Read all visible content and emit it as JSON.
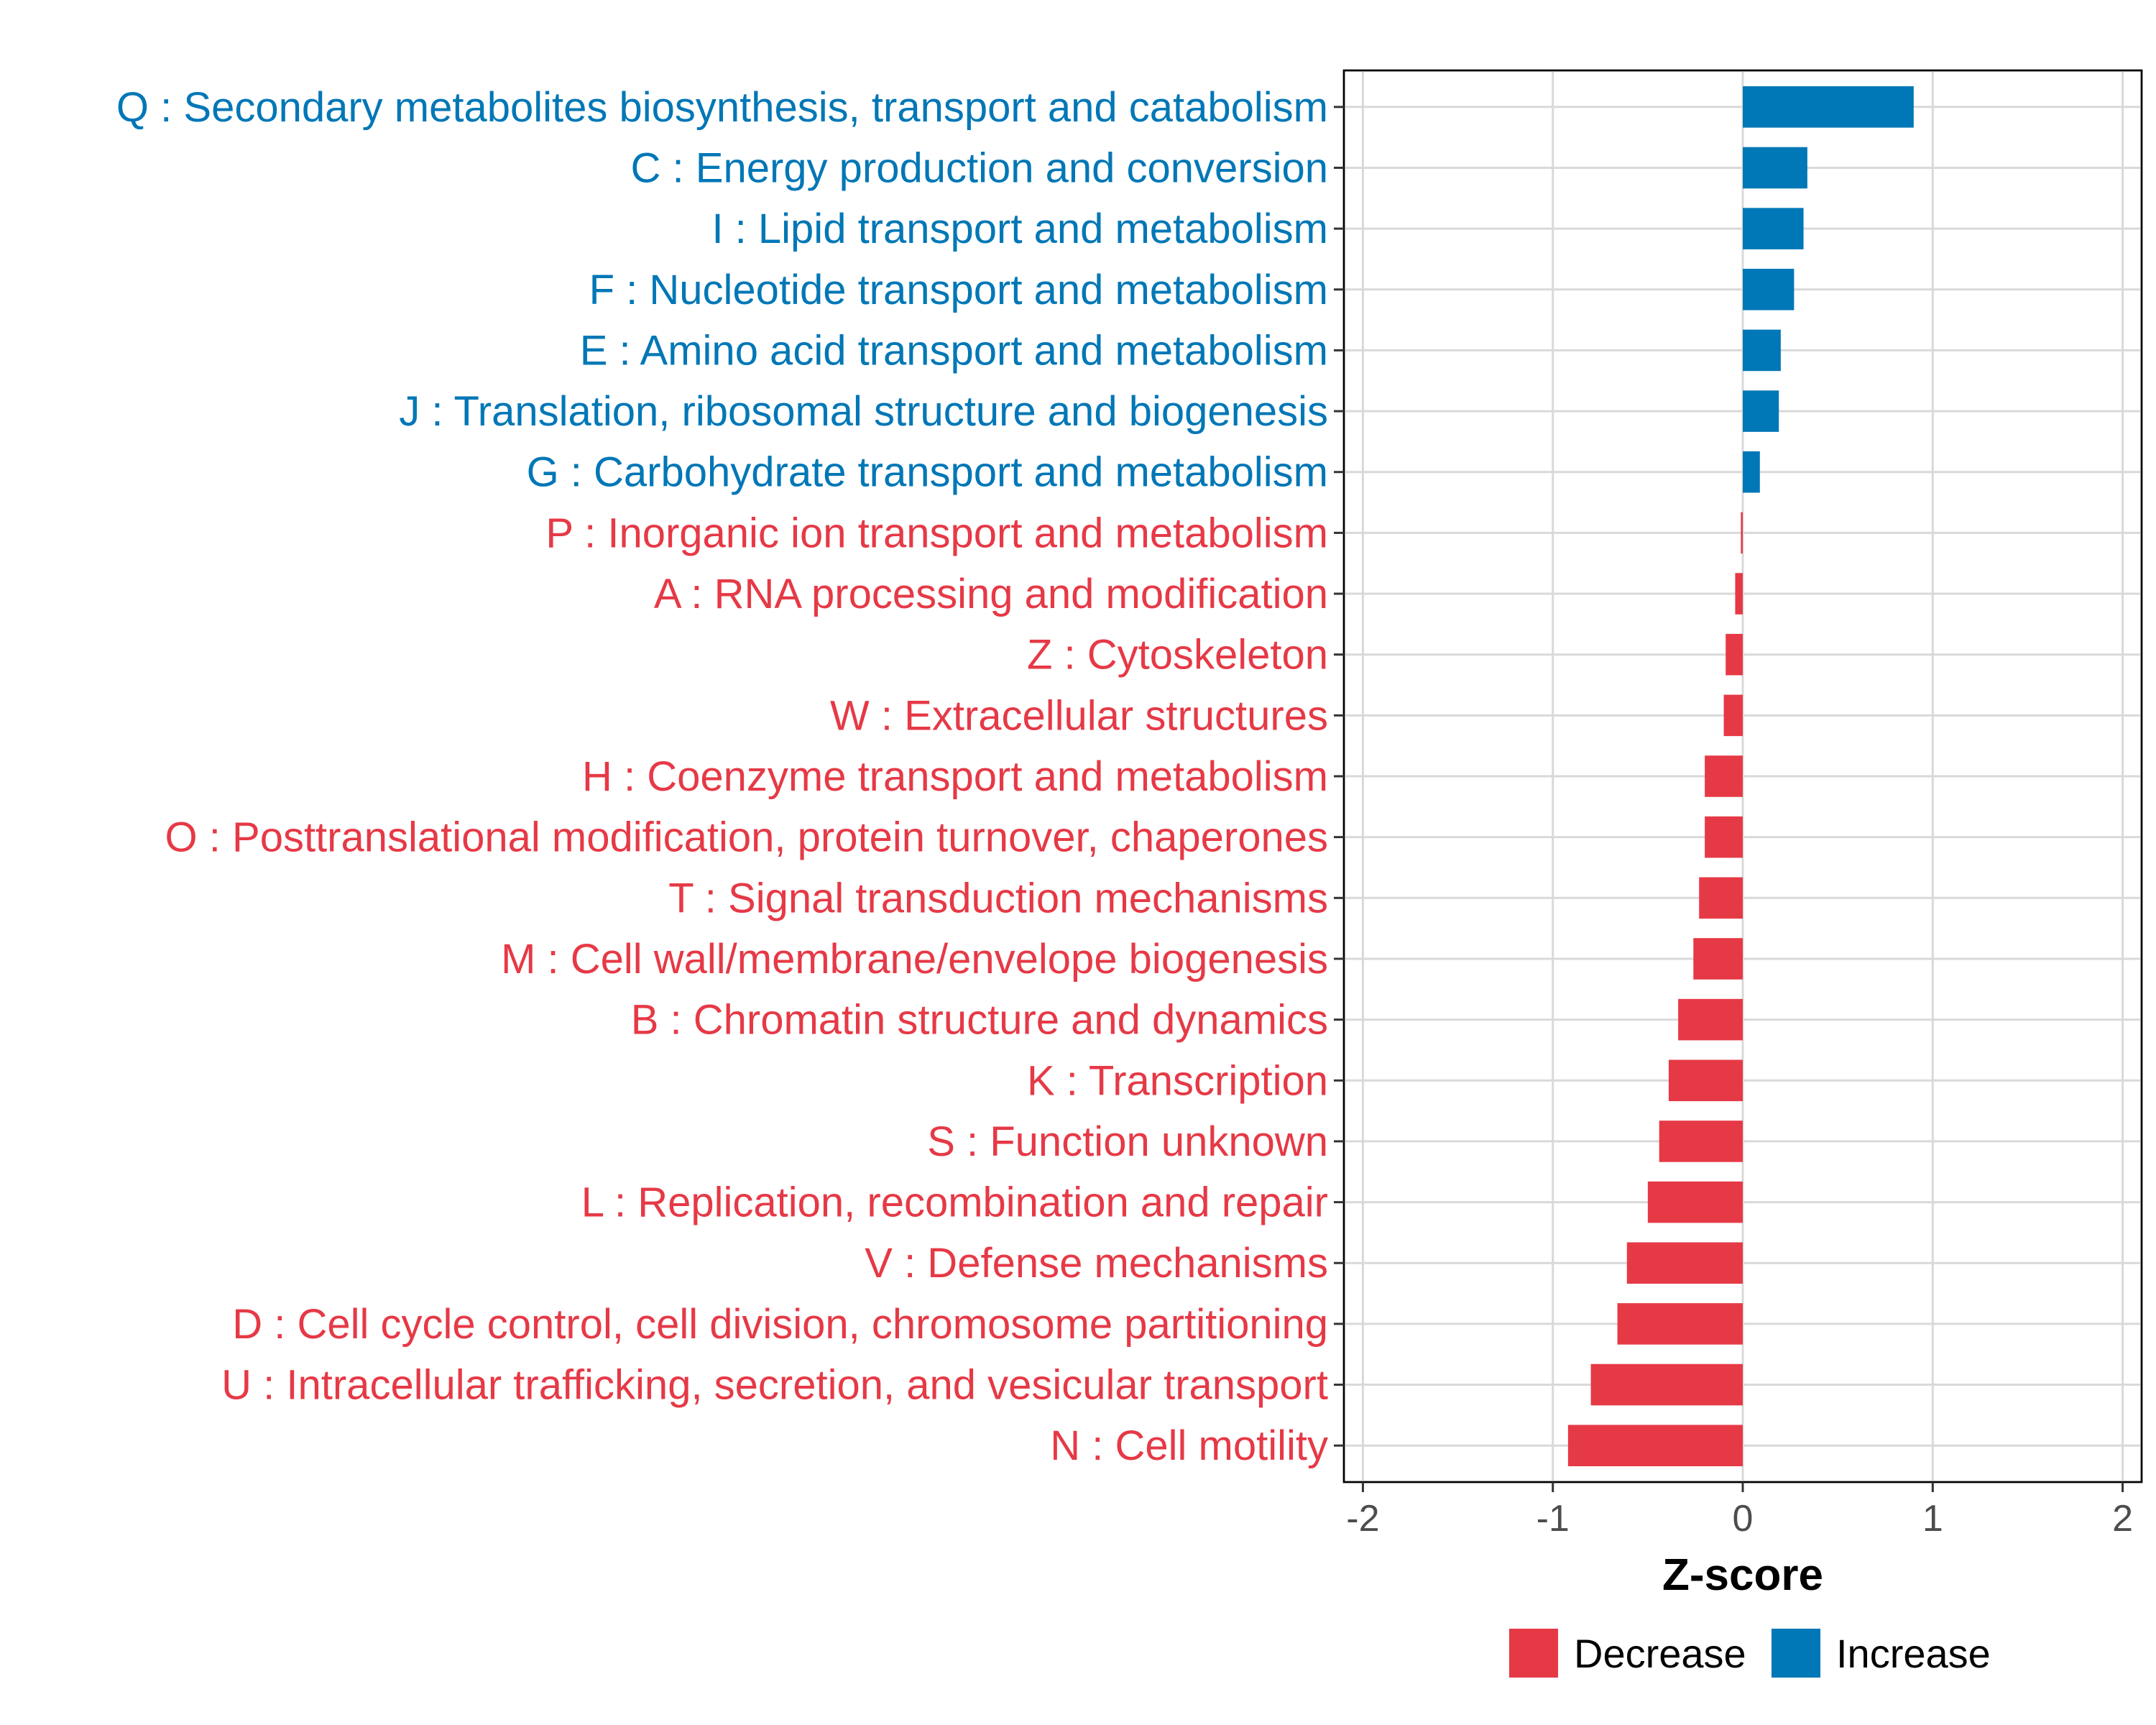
{
  "chart_data": {
    "type": "bar",
    "orientation": "horizontal",
    "xlabel": "Z-score",
    "ylabel": "",
    "xlim": [
      -2.1,
      2.1
    ],
    "xticks": [
      -2,
      -1,
      0,
      1,
      2
    ],
    "xtick_labels": [
      "-2",
      "-1",
      "0",
      "1",
      "2"
    ],
    "grid": true,
    "legend_position": "bottom-right",
    "legend": [
      {
        "label": "Decrease",
        "color": "#e63946"
      },
      {
        "label": "Increase",
        "color": "#0077b6"
      }
    ],
    "categories": [
      "Q : Secondary metabolites biosynthesis, transport and catabolism",
      "C : Energy production and conversion",
      "I : Lipid transport and metabolism",
      "F : Nucleotide transport and metabolism",
      "E : Amino acid transport and metabolism",
      "J : Translation, ribosomal structure and biogenesis",
      "G : Carbohydrate transport and metabolism",
      "P : Inorganic ion transport and metabolism",
      "A : RNA processing and modification",
      "Z : Cytoskeleton",
      "W : Extracellular structures",
      "H : Coenzyme transport and metabolism",
      "O : Posttranslational modification, protein turnover, chaperones",
      "T : Signal transduction mechanisms",
      "M : Cell wall/membrane/envelope biogenesis",
      "B : Chromatin structure and dynamics",
      "K : Transcription",
      "S : Function unknown",
      "L : Replication, recombination and repair",
      "V : Defense mechanisms",
      "D : Cell cycle control, cell division, chromosome partitioning",
      "U : Intracellular trafficking, secretion, and vesicular transport",
      "N : Cell motility"
    ],
    "values": [
      0.9,
      0.34,
      0.32,
      0.27,
      0.2,
      0.19,
      0.09,
      -0.01,
      -0.04,
      -0.09,
      -0.1,
      -0.2,
      -0.2,
      -0.23,
      -0.26,
      -0.34,
      -0.39,
      -0.44,
      -0.5,
      -0.61,
      -0.66,
      -0.8,
      -0.92
    ],
    "groups": [
      "Increase",
      "Increase",
      "Increase",
      "Increase",
      "Increase",
      "Increase",
      "Increase",
      "Decrease",
      "Decrease",
      "Decrease",
      "Decrease",
      "Decrease",
      "Decrease",
      "Decrease",
      "Decrease",
      "Decrease",
      "Decrease",
      "Decrease",
      "Decrease",
      "Decrease",
      "Decrease",
      "Decrease",
      "Decrease"
    ]
  }
}
